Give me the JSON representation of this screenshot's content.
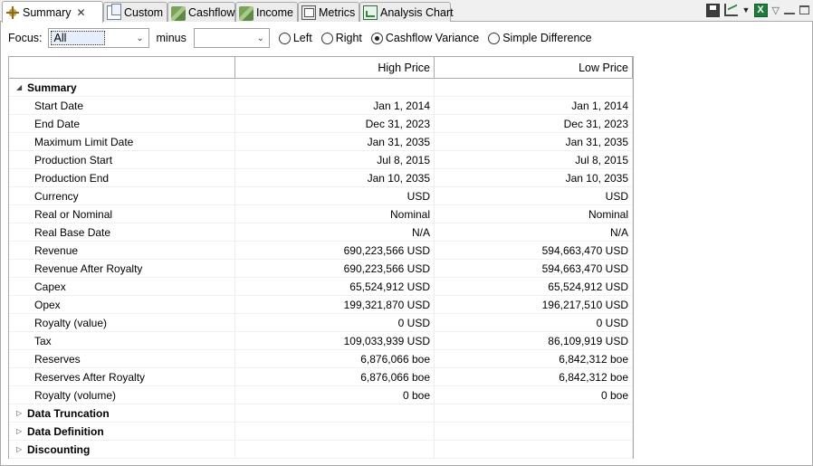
{
  "tabs": [
    {
      "label": "Summary",
      "icon": "summary-icon",
      "active": true,
      "closable": true
    },
    {
      "label": "Custom",
      "icon": "document-icon"
    },
    {
      "label": "Cashflow",
      "icon": "money-icon"
    },
    {
      "label": "Income",
      "icon": "money-icon"
    },
    {
      "label": "Metrics",
      "icon": "metrics-icon"
    },
    {
      "label": "Analysis Chart",
      "icon": "analysis-chart-icon"
    }
  ],
  "toolbar": {
    "excel_glyph": "X"
  },
  "filter": {
    "focus_label": "Focus:",
    "focus_value": "All",
    "minus_label": "minus",
    "minus_value": "",
    "options": [
      "Left",
      "Right",
      "Cashflow Variance",
      "Simple Difference"
    ],
    "selected": "Cashflow Variance"
  },
  "grid": {
    "columns": [
      "",
      "High Price",
      "Low Price"
    ],
    "summary": {
      "label": "Summary",
      "expanded": true,
      "rows": [
        {
          "label": "Start Date",
          "high": "Jan 1, 2014",
          "low": "Jan 1, 2014"
        },
        {
          "label": "End Date",
          "high": "Dec 31, 2023",
          "low": "Dec 31, 2023"
        },
        {
          "label": "Maximum Limit Date",
          "high": "Jan 31, 2035",
          "low": "Jan 31, 2035"
        },
        {
          "label": "Production Start",
          "high": "Jul 8, 2015",
          "low": "Jul 8, 2015"
        },
        {
          "label": "Production End",
          "high": "Jan 10, 2035",
          "low": "Jan 10, 2035"
        },
        {
          "label": "Currency",
          "high": "USD",
          "low": "USD"
        },
        {
          "label": "Real or Nominal",
          "high": "Nominal",
          "low": "Nominal"
        },
        {
          "label": "Real Base Date",
          "high": "N/A",
          "low": "N/A"
        },
        {
          "label": "Revenue",
          "high": "690,223,566 USD",
          "low": "594,663,470 USD"
        },
        {
          "label": "Revenue After Royalty",
          "high": "690,223,566 USD",
          "low": "594,663,470 USD"
        },
        {
          "label": "Capex",
          "high": "65,524,912 USD",
          "low": "65,524,912 USD"
        },
        {
          "label": "Opex",
          "high": "199,321,870 USD",
          "low": "196,217,510 USD"
        },
        {
          "label": "Royalty (value)",
          "high": "0 USD",
          "low": "0 USD"
        },
        {
          "label": "Tax",
          "high": "109,033,939 USD",
          "low": "86,109,919 USD"
        },
        {
          "label": "Reserves",
          "high": "6,876,066 boe",
          "low": "6,842,312 boe"
        },
        {
          "label": "Reserves After Royalty",
          "high": "6,876,066 boe",
          "low": "6,842,312 boe"
        },
        {
          "label": "Royalty (volume)",
          "high": "0 boe",
          "low": "0 boe"
        }
      ]
    },
    "collapsed_sections": [
      "Data Truncation",
      "Data Definition",
      "Discounting"
    ]
  }
}
